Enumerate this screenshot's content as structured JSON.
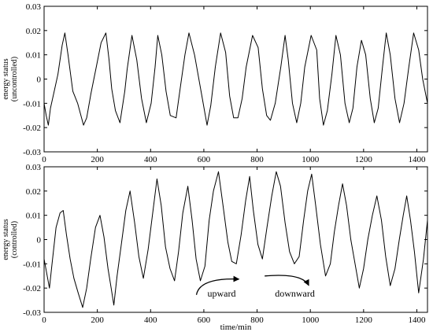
{
  "chart_data": [
    {
      "type": "line",
      "title": "",
      "xlabel": "",
      "ylabel": [
        "energy status",
        "(uncontrolled)"
      ],
      "xlim": [
        0,
        1440
      ],
      "ylim": [
        -0.03,
        0.03
      ],
      "xticks": [
        "0",
        "200",
        "400",
        "600",
        "800",
        "1000",
        "1200",
        "1400"
      ],
      "yticks": [
        "0.03",
        "0.02",
        "0.01",
        "0",
        "-0.01",
        "-0.02",
        "-0.03"
      ],
      "grid": false,
      "series": [
        {
          "color": "#000000",
          "x": [
            0,
            8,
            16,
            24,
            36,
            52,
            68,
            78,
            90,
            108,
            126,
            148,
            160,
            176,
            196,
            214,
            232,
            244,
            254,
            268,
            285,
            303,
            312,
            330,
            348,
            366,
            384,
            402,
            417,
            427,
            442,
            458,
            474,
            496,
            511,
            529,
            544,
            565,
            591,
            612,
            626,
            643,
            663,
            682,
            697,
            712,
            728,
            744,
            759,
            783,
            804,
            820,
            836,
            850,
            868,
            889,
            905,
            917,
            933,
            949,
            964,
            979,
            1003,
            1024,
            1035,
            1049,
            1064,
            1081,
            1096,
            1113,
            1130,
            1146,
            1160,
            1175,
            1192,
            1208,
            1225,
            1240,
            1255,
            1270,
            1285,
            1300,
            1318,
            1335,
            1352,
            1370,
            1388,
            1407,
            1422,
            1440
          ],
          "y": [
            -0.01,
            -0.015,
            -0.019,
            -0.012,
            -0.006,
            0.002,
            0.014,
            0.019,
            0.01,
            -0.005,
            -0.01,
            -0.019,
            -0.016,
            -0.006,
            0.005,
            0.015,
            0.019,
            0.008,
            -0.004,
            -0.013,
            -0.018,
            -0.005,
            0.004,
            0.018,
            0.008,
            -0.008,
            -0.018,
            -0.01,
            0.005,
            0.018,
            0.01,
            -0.005,
            -0.015,
            -0.016,
            -0.004,
            0.01,
            0.019,
            0.01,
            -0.006,
            -0.019,
            -0.011,
            0.005,
            0.019,
            0.011,
            -0.007,
            -0.016,
            -0.016,
            -0.008,
            0.005,
            0.018,
            0.013,
            -0.004,
            -0.015,
            -0.017,
            -0.01,
            0.005,
            0.018,
            0.008,
            -0.01,
            -0.018,
            -0.01,
            0.005,
            0.018,
            0.012,
            -0.008,
            -0.019,
            -0.013,
            0.002,
            0.018,
            0.01,
            -0.01,
            -0.018,
            -0.012,
            0.005,
            0.016,
            0.01,
            -0.008,
            -0.018,
            -0.012,
            0.004,
            0.019,
            0.01,
            -0.008,
            -0.018,
            -0.01,
            0.005,
            0.019,
            0.012,
            0.0,
            -0.01
          ]
        }
      ]
    },
    {
      "type": "line",
      "title": "",
      "xlabel": "time/min",
      "ylabel": [
        "energy status",
        "(controlled)"
      ],
      "xlim": [
        0,
        1440
      ],
      "ylim": [
        -0.03,
        0.03
      ],
      "xticks": [
        "0",
        "200",
        "400",
        "600",
        "800",
        "1000",
        "1200",
        "1400"
      ],
      "yticks": [
        "0.03",
        "0.02",
        "0.01",
        "0",
        "-0.01",
        "-0.02",
        "-0.03"
      ],
      "grid": false,
      "annotations": [
        {
          "text": "upward",
          "x": 720,
          "y": -0.0215,
          "arrow": "curved-up-right"
        },
        {
          "text": "downward",
          "x": 1000,
          "y": -0.0215,
          "arrow": "curved-down-right"
        }
      ],
      "series": [
        {
          "color": "#000000",
          "x": [
            0,
            10,
            20,
            30,
            45,
            60,
            72,
            84,
            98,
            112,
            128,
            145,
            160,
            175,
            193,
            210,
            225,
            240,
            252,
            262,
            274,
            290,
            307,
            323,
            340,
            356,
            373,
            391,
            407,
            424,
            440,
            456,
            473,
            490,
            505,
            521,
            540,
            556,
            571,
            587,
            604,
            620,
            636,
            655,
            672,
            690,
            705,
            722,
            740,
            757,
            772,
            786,
            803,
            820,
            837,
            855,
            872,
            888,
            905,
            922,
            940,
            958,
            975,
            990,
            1005,
            1020,
            1038,
            1057,
            1075,
            1090,
            1106,
            1121,
            1136,
            1152,
            1168,
            1184,
            1200,
            1216,
            1233,
            1250,
            1267,
            1283,
            1300,
            1318,
            1334,
            1349,
            1362,
            1376,
            1391,
            1407,
            1425,
            1440
          ],
          "y": [
            -0.008,
            -0.014,
            -0.02,
            -0.01,
            0.005,
            0.011,
            0.012,
            0.002,
            -0.008,
            -0.016,
            -0.022,
            -0.028,
            -0.02,
            -0.008,
            0.005,
            0.01,
            0.001,
            -0.012,
            -0.02,
            -0.027,
            -0.015,
            -0.002,
            0.012,
            0.02,
            0.007,
            -0.007,
            -0.016,
            -0.004,
            0.01,
            0.025,
            0.014,
            -0.003,
            -0.012,
            -0.017,
            -0.005,
            0.011,
            0.022,
            0.008,
            -0.008,
            -0.017,
            -0.011,
            0.008,
            0.02,
            0.028,
            0.014,
            -0.001,
            -0.009,
            -0.01,
            0.002,
            0.016,
            0.026,
            0.012,
            -0.002,
            -0.008,
            0.005,
            0.018,
            0.028,
            0.022,
            0.007,
            -0.005,
            -0.01,
            -0.007,
            0.008,
            0.02,
            0.027,
            0.014,
            -0.002,
            -0.015,
            -0.01,
            0.003,
            0.014,
            0.023,
            0.014,
            0.0,
            -0.01,
            -0.02,
            -0.012,
            0.0,
            0.01,
            0.018,
            0.008,
            -0.007,
            -0.019,
            -0.012,
            0.0,
            0.01,
            0.018,
            0.008,
            -0.005,
            -0.022,
            -0.008,
            0.008
          ]
        }
      ]
    }
  ]
}
